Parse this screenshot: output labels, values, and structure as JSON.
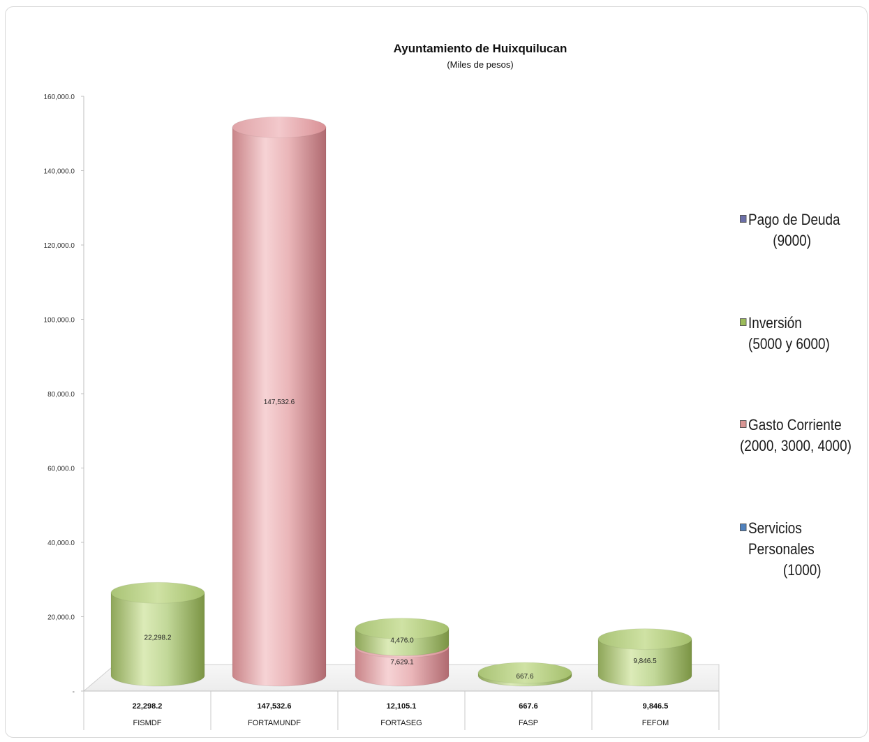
{
  "chart_data": {
    "type": "bar",
    "title": "Ayuntamiento de Huixquilucan",
    "subtitle": "(Miles de pesos)",
    "ylim": [
      0,
      160000
    ],
    "yticks": [
      "-",
      "20,000.0",
      "40,000.0",
      "60,000.0",
      "80,000.0",
      "100,000.0",
      "120,000.0",
      "140,000.0",
      "160,000.0"
    ],
    "categories": [
      "FISMDF",
      "FORTAMUNDF",
      "FORTASEG",
      "FASP",
      "FEFOM"
    ],
    "totals": [
      "22,298.2",
      "147,532.6",
      "12,105.1",
      "667.6",
      "9,846.5"
    ],
    "series": [
      {
        "name": "Gasto Corriente (2000, 3000, 4000)",
        "color": "#e7b3b6",
        "values": [
          0,
          147532.6,
          7629.1,
          0,
          0
        ],
        "labels": [
          "",
          "147,532.6",
          "7,629.1",
          "",
          ""
        ]
      },
      {
        "name": "Inversión (5000 y 6000)",
        "color": "#b5cf86",
        "values": [
          22298.2,
          0,
          4476.0,
          667.6,
          9846.5
        ],
        "labels": [
          "22,298.2",
          "",
          "4,476.0",
          "667.6",
          "9,846.5"
        ]
      }
    ],
    "legend": {
      "position": "right",
      "items": [
        {
          "line1": "Pago de Deuda",
          "line2": "(9000)",
          "line3": "",
          "color": "#6b6fa8"
        },
        {
          "line1": "Inversión",
          "line2": "(5000 y 6000)",
          "line3": "",
          "color": "#9bbb59"
        },
        {
          "line1": "Gasto Corriente",
          "line2": "(2000, 3000, 4000)",
          "line3": "",
          "color": "#d99694"
        },
        {
          "line1": "Servicios",
          "line2": "Personales",
          "line3": "(1000)",
          "color": "#4f81bd"
        }
      ]
    }
  }
}
